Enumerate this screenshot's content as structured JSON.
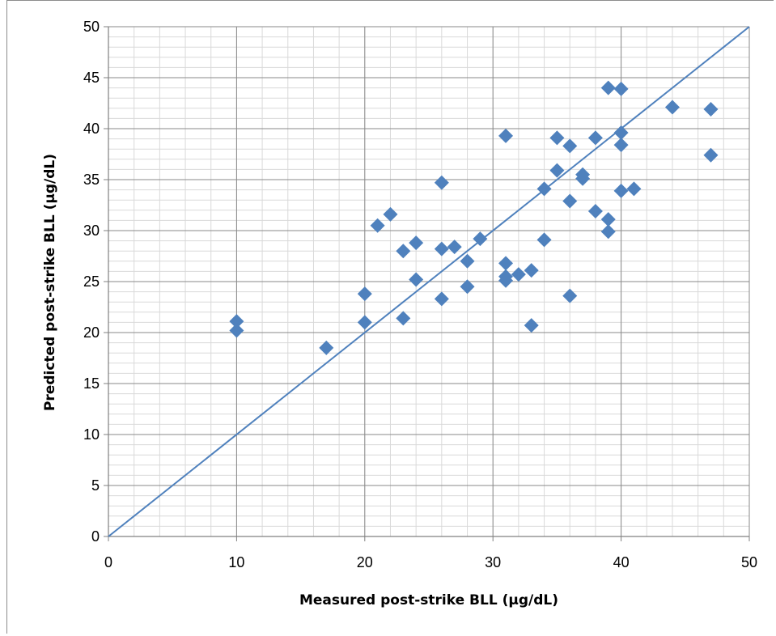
{
  "chart_data": {
    "type": "scatter",
    "title": "",
    "xlabel": "Measured post-strike BLL (µg/dL)",
    "ylabel": "Predicted post-strike BLL (µg/dL)",
    "xlim": [
      0,
      50
    ],
    "ylim": [
      0,
      50
    ],
    "x_major_ticks": [
      0,
      10,
      20,
      30,
      40,
      50
    ],
    "y_major_ticks": [
      0,
      5,
      10,
      15,
      20,
      25,
      30,
      35,
      40,
      45,
      50
    ],
    "x_minor_step": 2,
    "y_minor_step": 1,
    "grid": true,
    "legend": "none",
    "reference_line": {
      "x": [
        0,
        50
      ],
      "y": [
        0,
        50
      ]
    },
    "marker": "diamond",
    "color": "#4f81bd",
    "series": [
      {
        "points": [
          [
            10,
            21.1
          ],
          [
            10,
            20.2
          ],
          [
            17,
            18.5
          ],
          [
            20,
            23.8
          ],
          [
            20,
            21.0
          ],
          [
            21,
            30.5
          ],
          [
            22,
            31.6
          ],
          [
            23,
            28.0
          ],
          [
            23,
            21.4
          ],
          [
            24,
            28.8
          ],
          [
            24,
            25.2
          ],
          [
            26,
            34.7
          ],
          [
            26,
            28.2
          ],
          [
            26,
            23.3
          ],
          [
            27,
            28.4
          ],
          [
            28,
            27.0
          ],
          [
            28,
            24.5
          ],
          [
            29,
            29.2
          ],
          [
            31,
            39.3
          ],
          [
            31,
            26.8
          ],
          [
            31,
            25.5
          ],
          [
            31,
            25.1
          ],
          [
            32,
            25.7
          ],
          [
            33,
            26.1
          ],
          [
            33,
            20.7
          ],
          [
            34,
            34.1
          ],
          [
            34,
            29.1
          ],
          [
            35,
            39.1
          ],
          [
            35,
            35.9
          ],
          [
            36,
            38.3
          ],
          [
            36,
            32.9
          ],
          [
            36,
            23.6
          ],
          [
            37,
            35.5
          ],
          [
            37,
            35.1
          ],
          [
            38,
            39.1
          ],
          [
            38,
            31.9
          ],
          [
            39,
            44.0
          ],
          [
            39,
            31.1
          ],
          [
            39,
            29.9
          ],
          [
            40,
            43.9
          ],
          [
            40,
            39.6
          ],
          [
            40,
            38.4
          ],
          [
            40,
            33.9
          ],
          [
            41,
            34.1
          ],
          [
            44,
            42.1
          ],
          [
            47,
            41.9
          ],
          [
            47,
            37.4
          ]
        ]
      }
    ]
  }
}
